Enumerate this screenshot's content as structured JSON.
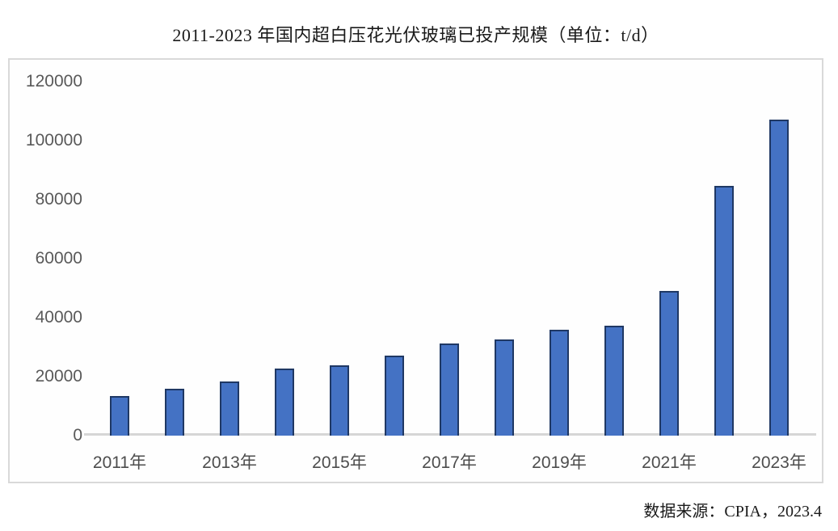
{
  "title": "2011-2023 年国内超白压花光伏玻璃已投产规模（单位：t/d）",
  "source_note": "数据来源：CPIA，2023.4",
  "colors": {
    "bar_fill": "#4472C4",
    "bar_border": "#1F3864",
    "axis_line": "#D6D6D6",
    "tick_label": "#595959",
    "plot_border": "#D9D9D9"
  },
  "chart_data": {
    "type": "bar",
    "title": "2011-2023 年国内超白压花光伏玻璃已投产规模（单位：t/d）",
    "unit": "t/d",
    "categories": [
      "2011年",
      "2012年",
      "2013年",
      "2014年",
      "2015年",
      "2016年",
      "2017年",
      "2018年",
      "2019年",
      "2020年",
      "2021年",
      "2022年",
      "2023年"
    ],
    "values": [
      13500,
      15800,
      18300,
      22700,
      23800,
      27100,
      31200,
      32600,
      35900,
      37300,
      49000,
      84600,
      107000
    ],
    "x_tick_labels_visible": [
      "2011年",
      "2013年",
      "2015年",
      "2017年",
      "2019年",
      "2021年",
      "2023年"
    ],
    "y_ticks": [
      0,
      20000,
      40000,
      60000,
      80000,
      100000,
      120000
    ],
    "ylim": [
      0,
      120000
    ],
    "xlabel": "",
    "ylabel": "",
    "grid": false,
    "legend": "none",
    "source": "数据来源：CPIA，2023.4"
  }
}
